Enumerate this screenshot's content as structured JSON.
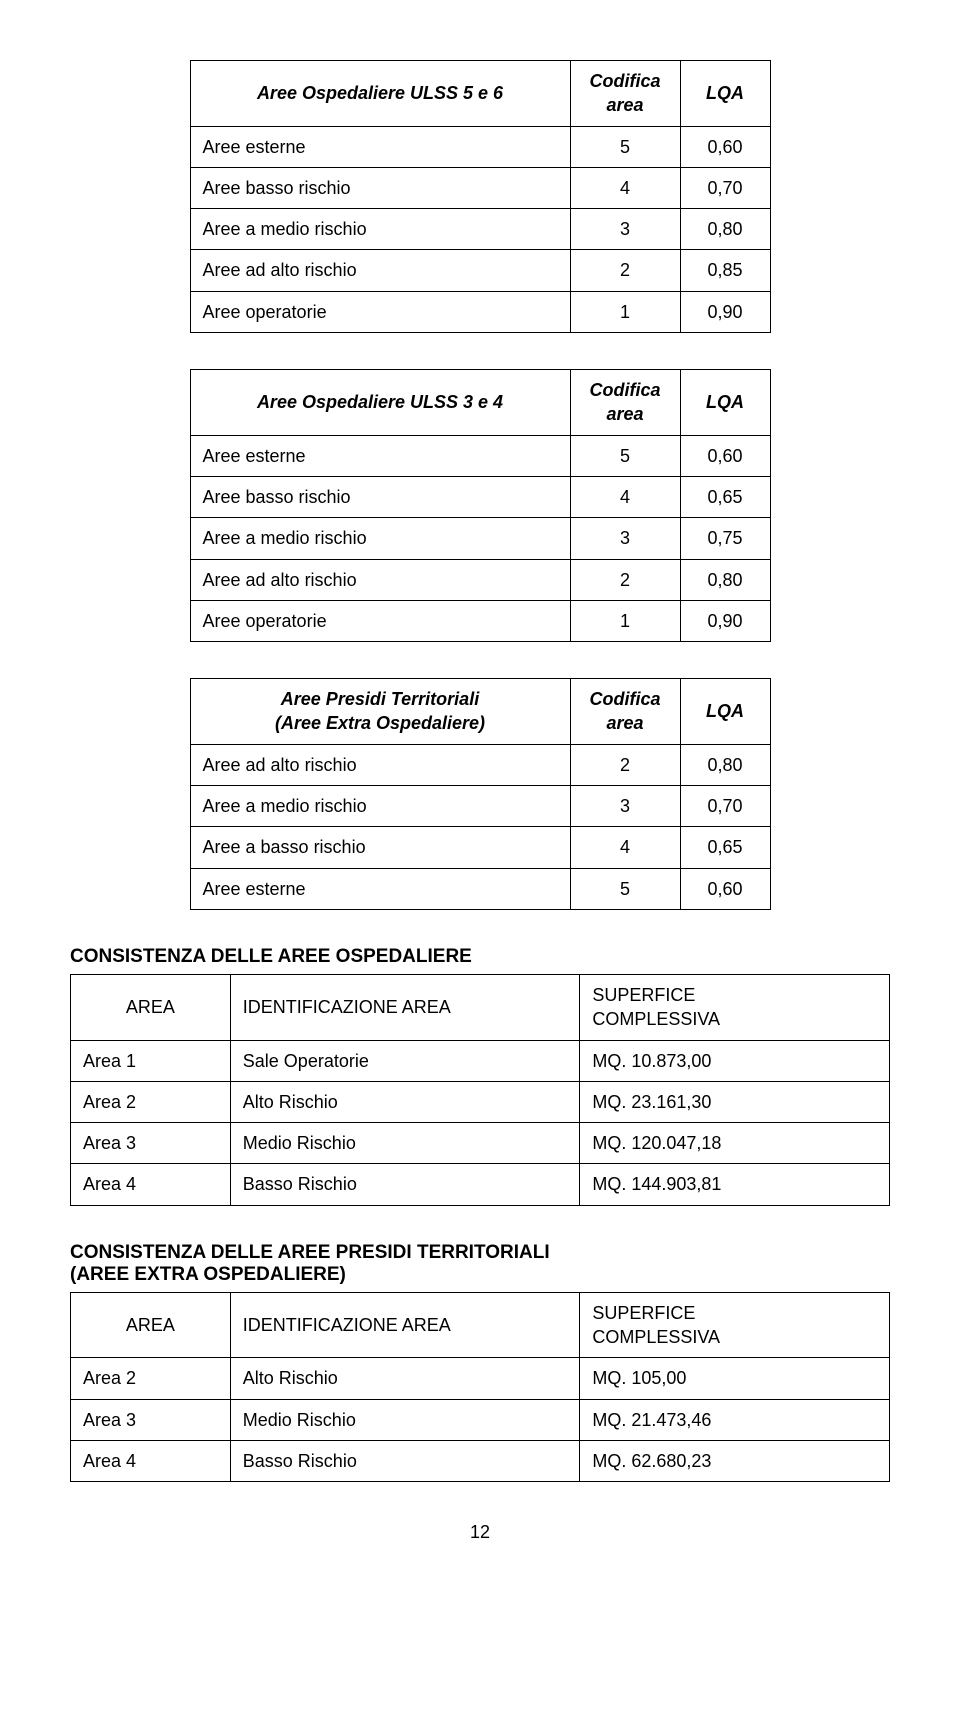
{
  "tableA": {
    "title": "Aree Ospedaliere ULSS 5 e 6",
    "col2_l1": "Codifica",
    "col2_l2": "area",
    "col3": "LQA",
    "rows": [
      {
        "label": "Aree esterne",
        "code": "5",
        "lqa": "0,60"
      },
      {
        "label": "Aree basso rischio",
        "code": "4",
        "lqa": "0,70"
      },
      {
        "label": "Aree a medio rischio",
        "code": "3",
        "lqa": "0,80"
      },
      {
        "label": "Aree ad alto rischio",
        "code": "2",
        "lqa": "0,85"
      },
      {
        "label": "Aree operatorie",
        "code": "1",
        "lqa": "0,90"
      }
    ]
  },
  "tableB": {
    "title": "Aree Ospedaliere ULSS 3 e 4",
    "col2_l1": "Codifica",
    "col2_l2": "area",
    "col3": "LQA",
    "rows": [
      {
        "label": "Aree esterne",
        "code": "5",
        "lqa": "0,60"
      },
      {
        "label": "Aree basso rischio",
        "code": "4",
        "lqa": "0,65"
      },
      {
        "label": "Aree a medio rischio",
        "code": "3",
        "lqa": "0,75"
      },
      {
        "label": "Aree ad alto rischio",
        "code": "2",
        "lqa": "0,80"
      },
      {
        "label": "Aree operatorie",
        "code": "1",
        "lqa": "0,90"
      }
    ]
  },
  "tableC": {
    "title_l1": "Aree Presidi Territoriali",
    "title_l2": "(Aree Extra Ospedaliere)",
    "col2_l1": "Codifica",
    "col2_l2": "area",
    "col3": "LQA",
    "rows": [
      {
        "label": "Aree ad alto rischio",
        "code": "2",
        "lqa": "0,80"
      },
      {
        "label": "Aree a medio rischio",
        "code": "3",
        "lqa": "0,70"
      },
      {
        "label": "Aree a basso rischio",
        "code": "4",
        "lqa": "0,65"
      },
      {
        "label": "Aree esterne",
        "code": "5",
        "lqa": "0,60"
      }
    ]
  },
  "section1": {
    "heading": "CONSISTENZA DELLE AREE OSPEDALIERE",
    "headers": {
      "c1": "AREA",
      "c2": "IDENTIFICAZIONE AREA",
      "c3_l1": "SUPERFICE",
      "c3_l2": "COMPLESSIVA"
    },
    "rows": [
      {
        "area": "Area 1",
        "ident": "Sale Operatorie",
        "sup": "MQ. 10.873,00"
      },
      {
        "area": "Area 2",
        "ident": "Alto Rischio",
        "sup": "MQ. 23.161,30"
      },
      {
        "area": "Area 3",
        "ident": "Medio Rischio",
        "sup": "MQ. 120.047,18"
      },
      {
        "area": "Area 4",
        "ident": "Basso Rischio",
        "sup": "MQ. 144.903,81"
      }
    ]
  },
  "section2": {
    "heading_l1": "CONSISTENZA DELLE AREE PRESIDI TERRITORIALI",
    "heading_l2": "(AREE EXTRA OSPEDALIERE)",
    "headers": {
      "c1": "AREA",
      "c2": "IDENTIFICAZIONE AREA",
      "c3_l1": "SUPERFICE",
      "c3_l2": "COMPLESSIVA"
    },
    "rows": [
      {
        "area": "Area 2",
        "ident": "Alto Rischio",
        "sup": "MQ.   105,00"
      },
      {
        "area": "Area 3",
        "ident": "Medio Rischio",
        "sup": "MQ. 21.473,46"
      },
      {
        "area": "Area 4",
        "ident": "Basso Rischio",
        "sup": "MQ. 62.680,23"
      }
    ]
  },
  "page_number": "12"
}
